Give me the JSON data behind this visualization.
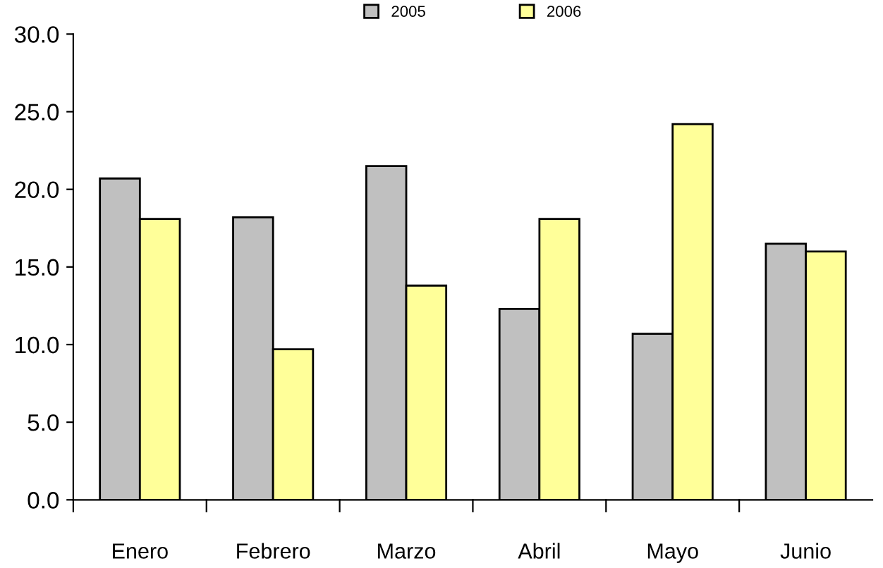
{
  "chart_data": {
    "type": "bar",
    "categories": [
      "Enero",
      "Febrero",
      "Marzo",
      "Abril",
      "Mayo",
      "Junio"
    ],
    "series": [
      {
        "name": "2005",
        "color": "#c0c0c0",
        "values": [
          20.7,
          18.2,
          21.5,
          12.3,
          10.7,
          16.5
        ]
      },
      {
        "name": "2006",
        "color": "#ffff99",
        "values": [
          18.1,
          9.7,
          13.8,
          18.1,
          24.2,
          16.0
        ]
      }
    ],
    "ylim": [
      0,
      30
    ],
    "yticks": [
      {
        "value": 0,
        "label": "0.0"
      },
      {
        "value": 5,
        "label": "5.0"
      },
      {
        "value": 10,
        "label": "10.0"
      },
      {
        "value": 15,
        "label": "15.0"
      },
      {
        "value": 20,
        "label": "20.0"
      },
      {
        "value": 25,
        "label": "25.0"
      },
      {
        "value": 30,
        "label": "30.0"
      }
    ],
    "grid": false,
    "legend": "top"
  }
}
